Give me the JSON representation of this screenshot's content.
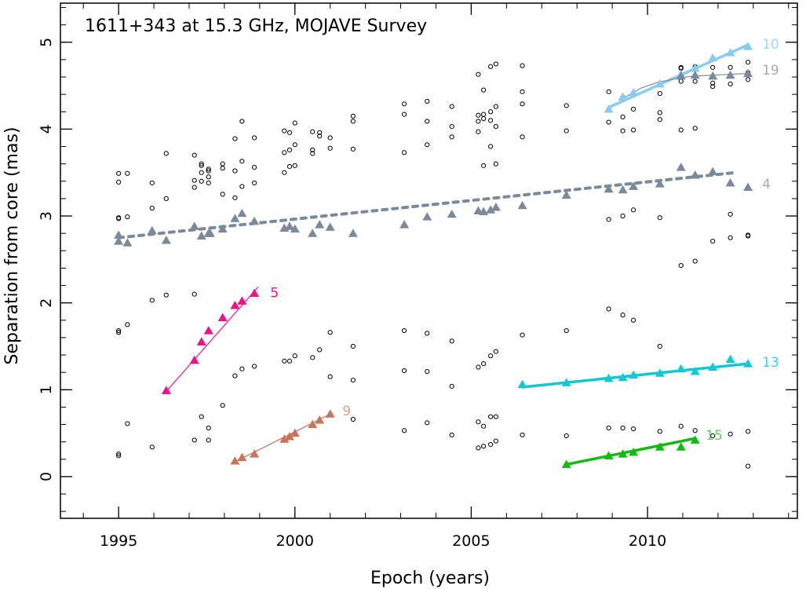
{
  "chart_data": {
    "type": "scatter",
    "title": "1611+343 at 15.3 GHz, MOJAVE Survey",
    "xlabel": "Epoch (years)",
    "ylabel": "Separation from core (mas)",
    "xlim": [
      1993.35,
      2014.25
    ],
    "ylim": [
      -0.48,
      5.45
    ],
    "x_ticks": [
      1995,
      2000,
      2005,
      2010
    ],
    "y_ticks": [
      0,
      1,
      2,
      3,
      4,
      5
    ],
    "x_tick_labels": [
      "1995",
      "2000",
      "2005",
      "2010"
    ],
    "y_tick_labels": [
      "0",
      "1",
      "2",
      "3",
      "4",
      "5"
    ],
    "background_points": [
      [
        1995.0,
        0.24
      ],
      [
        1995.0,
        0.26
      ],
      [
        1995.0,
        1.66
      ],
      [
        1995.0,
        1.68
      ],
      [
        1995.0,
        2.97
      ],
      [
        1995.0,
        2.98
      ],
      [
        1995.0,
        3.39
      ],
      [
        1995.0,
        3.49
      ],
      [
        1995.25,
        0.61
      ],
      [
        1995.25,
        1.75
      ],
      [
        1995.25,
        2.99
      ],
      [
        1995.25,
        3.49
      ],
      [
        1995.95,
        0.34
      ],
      [
        1995.95,
        2.03
      ],
      [
        1995.95,
        3.09
      ],
      [
        1995.95,
        3.38
      ],
      [
        1996.35,
        2.09
      ],
      [
        1996.35,
        3.2
      ],
      [
        1996.35,
        3.72
      ],
      [
        1997.15,
        0.42
      ],
      [
        1997.15,
        2.1
      ],
      [
        1997.15,
        3.33
      ],
      [
        1997.15,
        3.41
      ],
      [
        1997.15,
        3.7
      ],
      [
        1997.35,
        0.69
      ],
      [
        1997.35,
        3.4
      ],
      [
        1997.35,
        3.5
      ],
      [
        1997.35,
        3.58
      ],
      [
        1997.35,
        3.6
      ],
      [
        1997.55,
        0.42
      ],
      [
        1997.55,
        0.56
      ],
      [
        1997.55,
        3.38
      ],
      [
        1997.55,
        3.45
      ],
      [
        1997.55,
        3.52
      ],
      [
        1997.55,
        3.54
      ],
      [
        1997.95,
        0.82
      ],
      [
        1997.95,
        3.25
      ],
      [
        1997.95,
        3.55
      ],
      [
        1997.95,
        3.6
      ],
      [
        1998.3,
        1.16
      ],
      [
        1998.3,
        3.21
      ],
      [
        1998.3,
        3.52
      ],
      [
        1998.3,
        3.89
      ],
      [
        1998.5,
        1.24
      ],
      [
        1998.5,
        3.34
      ],
      [
        1998.5,
        3.63
      ],
      [
        1998.5,
        4.09
      ],
      [
        1998.85,
        1.27
      ],
      [
        1998.85,
        3.38
      ],
      [
        1998.85,
        3.56
      ],
      [
        1998.85,
        3.9
      ],
      [
        1999.7,
        1.33
      ],
      [
        1999.7,
        3.5
      ],
      [
        1999.7,
        3.73
      ],
      [
        1999.7,
        3.98
      ],
      [
        1999.85,
        1.33
      ],
      [
        1999.85,
        3.57
      ],
      [
        1999.85,
        3.76
      ],
      [
        1999.85,
        3.96
      ],
      [
        2000.0,
        1.39
      ],
      [
        2000.0,
        3.58
      ],
      [
        2000.0,
        3.82
      ],
      [
        2000.0,
        4.07
      ],
      [
        2000.5,
        1.37
      ],
      [
        2000.5,
        3.72
      ],
      [
        2000.5,
        3.76
      ],
      [
        2000.5,
        3.97
      ],
      [
        2000.7,
        1.46
      ],
      [
        2000.7,
        3.92
      ],
      [
        2000.7,
        3.96
      ],
      [
        2001.0,
        1.15
      ],
      [
        2001.0,
        1.66
      ],
      [
        2001.0,
        3.78
      ],
      [
        2001.0,
        3.9
      ],
      [
        2001.65,
        0.66
      ],
      [
        2001.65,
        1.11
      ],
      [
        2001.65,
        1.5
      ],
      [
        2001.65,
        3.77
      ],
      [
        2001.65,
        4.09
      ],
      [
        2001.65,
        4.15
      ],
      [
        2003.1,
        0.53
      ],
      [
        2003.1,
        1.22
      ],
      [
        2003.1,
        1.68
      ],
      [
        2003.1,
        3.73
      ],
      [
        2003.1,
        4.17
      ],
      [
        2003.1,
        4.29
      ],
      [
        2003.75,
        0.62
      ],
      [
        2003.75,
        1.21
      ],
      [
        2003.75,
        1.65
      ],
      [
        2003.75,
        3.82
      ],
      [
        2003.75,
        4.09
      ],
      [
        2003.75,
        4.32
      ],
      [
        2004.45,
        0.48
      ],
      [
        2004.45,
        1.04
      ],
      [
        2004.45,
        1.56
      ],
      [
        2004.45,
        3.91
      ],
      [
        2004.45,
        4.03
      ],
      [
        2004.45,
        4.26
      ],
      [
        2005.2,
        0.33
      ],
      [
        2005.2,
        0.63
      ],
      [
        2005.2,
        1.26
      ],
      [
        2005.2,
        3.97
      ],
      [
        2005.2,
        4.09
      ],
      [
        2005.2,
        4.16
      ],
      [
        2005.2,
        4.63
      ],
      [
        2005.35,
        0.35
      ],
      [
        2005.35,
        0.58
      ],
      [
        2005.35,
        1.3
      ],
      [
        2005.35,
        3.58
      ],
      [
        2005.35,
        4.12
      ],
      [
        2005.35,
        4.17
      ],
      [
        2005.35,
        4.45
      ],
      [
        2005.55,
        0.37
      ],
      [
        2005.55,
        0.69
      ],
      [
        2005.55,
        1.39
      ],
      [
        2005.55,
        3.8
      ],
      [
        2005.55,
        4.1
      ],
      [
        2005.55,
        4.2
      ],
      [
        2005.55,
        4.72
      ],
      [
        2005.7,
        0.41
      ],
      [
        2005.7,
        0.69
      ],
      [
        2005.7,
        1.44
      ],
      [
        2005.7,
        3.6
      ],
      [
        2005.7,
        4.03
      ],
      [
        2005.7,
        4.26
      ],
      [
        2005.7,
        4.75
      ],
      [
        2006.45,
        0.48
      ],
      [
        2006.45,
        1.63
      ],
      [
        2006.45,
        3.91
      ],
      [
        2006.45,
        4.29
      ],
      [
        2006.45,
        4.43
      ],
      [
        2006.45,
        4.73
      ],
      [
        2007.7,
        0.47
      ],
      [
        2007.7,
        1.68
      ],
      [
        2007.7,
        3.98
      ],
      [
        2007.7,
        4.27
      ],
      [
        2008.9,
        0.56
      ],
      [
        2008.9,
        1.93
      ],
      [
        2008.9,
        2.96
      ],
      [
        2008.9,
        4.08
      ],
      [
        2008.9,
        4.43
      ],
      [
        2009.3,
        0.56
      ],
      [
        2009.3,
        1.86
      ],
      [
        2009.3,
        3.0
      ],
      [
        2009.3,
        3.98
      ],
      [
        2009.3,
        4.14
      ],
      [
        2009.3,
        4.37
      ],
      [
        2009.6,
        0.55
      ],
      [
        2009.6,
        1.8
      ],
      [
        2009.6,
        3.07
      ],
      [
        2009.6,
        3.99
      ],
      [
        2009.6,
        4.23
      ],
      [
        2009.6,
        4.39
      ],
      [
        2010.35,
        0.52
      ],
      [
        2010.35,
        1.5
      ],
      [
        2010.35,
        2.98
      ],
      [
        2010.35,
        4.11
      ],
      [
        2010.35,
        4.19
      ],
      [
        2010.35,
        4.41
      ],
      [
        2010.95,
        0.58
      ],
      [
        2010.95,
        2.43
      ],
      [
        2010.95,
        3.99
      ],
      [
        2010.95,
        4.55
      ],
      [
        2010.95,
        4.7
      ],
      [
        2010.95,
        4.71
      ],
      [
        2011.35,
        0.53
      ],
      [
        2011.35,
        2.48
      ],
      [
        2011.35,
        4.01
      ],
      [
        2011.35,
        4.55
      ],
      [
        2011.35,
        4.72
      ],
      [
        2011.85,
        0.47
      ],
      [
        2011.85,
        2.71
      ],
      [
        2011.85,
        4.49
      ],
      [
        2011.85,
        4.53
      ],
      [
        2011.85,
        4.71
      ],
      [
        2012.35,
        0.49
      ],
      [
        2012.35,
        2.75
      ],
      [
        2012.35,
        3.02
      ],
      [
        2012.35,
        4.52
      ],
      [
        2012.35,
        4.71
      ],
      [
        2012.85,
        0.12
      ],
      [
        2012.85,
        0.52
      ],
      [
        2012.85,
        2.77
      ],
      [
        2012.85,
        2.78
      ],
      [
        2012.85,
        4.57
      ],
      [
        2012.85,
        4.65
      ],
      [
        2012.85,
        4.77
      ]
    ],
    "series": [
      {
        "name": "4",
        "color": "#7a8a9a",
        "fit_color": "#7a8a9a",
        "fit_style": "dotted",
        "fit_width": 4,
        "points": [
          [
            1995.0,
            2.78
          ],
          [
            1995.0,
            2.71
          ],
          [
            1995.25,
            2.69
          ],
          [
            1995.95,
            2.83
          ],
          [
            1996.35,
            2.72
          ],
          [
            1997.15,
            2.88
          ],
          [
            1997.35,
            2.77
          ],
          [
            1997.55,
            2.8
          ],
          [
            1997.6,
            2.8
          ],
          [
            1997.95,
            2.85
          ],
          [
            1998.3,
            2.97
          ],
          [
            1998.5,
            3.03
          ],
          [
            1998.85,
            2.94
          ],
          [
            1999.7,
            2.86
          ],
          [
            1999.85,
            2.88
          ],
          [
            2000.0,
            2.85
          ],
          [
            2000.5,
            2.8
          ],
          [
            2000.7,
            2.9
          ],
          [
            2001.0,
            2.87
          ],
          [
            2001.65,
            2.8
          ],
          [
            2003.1,
            2.9
          ],
          [
            2003.75,
            2.99
          ],
          [
            2004.45,
            3.02
          ],
          [
            2005.2,
            3.06
          ],
          [
            2005.35,
            3.05
          ],
          [
            2005.55,
            3.07
          ],
          [
            2005.7,
            3.1
          ],
          [
            2006.45,
            3.12
          ],
          [
            2007.7,
            3.24
          ],
          [
            2008.9,
            3.31
          ],
          [
            2009.3,
            3.3
          ],
          [
            2009.6,
            3.34
          ],
          [
            2010.35,
            3.37
          ],
          [
            2010.95,
            3.56
          ],
          [
            2011.35,
            3.47
          ],
          [
            2011.85,
            3.51
          ],
          [
            2012.35,
            3.38
          ],
          [
            2012.85,
            3.33
          ]
        ],
        "fit": [
          [
            1995.0,
            2.75
          ],
          [
            2012.5,
            3.5
          ]
        ]
      },
      {
        "name": "5",
        "color": "#ee1188",
        "fit_color": "#ee1188",
        "fit_style": "solid",
        "fit_width": 1.2,
        "points": [
          [
            1996.35,
            0.99
          ],
          [
            1997.15,
            1.34
          ],
          [
            1997.35,
            1.55
          ],
          [
            1997.55,
            1.68
          ],
          [
            1997.95,
            1.83
          ],
          [
            1998.3,
            1.97
          ],
          [
            1998.5,
            2.02
          ],
          [
            1998.85,
            2.11
          ]
        ],
        "fit": [
          [
            1996.35,
            0.98
          ],
          [
            1998.95,
            2.18
          ]
        ]
      },
      {
        "name": "9",
        "color": "#c8735a",
        "fit_color": "#c8735a",
        "fit_style": "solid",
        "fit_width": 1.2,
        "points": [
          [
            1998.3,
            0.18
          ],
          [
            1998.5,
            0.22
          ],
          [
            1998.85,
            0.26
          ],
          [
            1999.7,
            0.43
          ],
          [
            1999.85,
            0.46
          ],
          [
            2000.0,
            0.5
          ],
          [
            2000.5,
            0.6
          ],
          [
            2000.7,
            0.65
          ],
          [
            2001.0,
            0.72
          ]
        ],
        "fit": [
          [
            1998.3,
            0.17
          ],
          [
            2001.05,
            0.73
          ]
        ]
      },
      {
        "name": "10",
        "color": "#88ccf4",
        "fit_color": "#88ccf4",
        "fit_style": "solid",
        "fit_width": 3.5,
        "points": [
          [
            2008.9,
            4.23
          ],
          [
            2009.3,
            4.37
          ],
          [
            2009.6,
            4.42
          ],
          [
            2010.35,
            4.52
          ],
          [
            2010.95,
            4.63
          ],
          [
            2011.35,
            4.7
          ],
          [
            2011.85,
            4.82
          ],
          [
            2012.35,
            4.88
          ],
          [
            2012.85,
            4.95
          ]
        ],
        "fit": [
          [
            2008.9,
            4.25
          ],
          [
            2012.85,
            4.97
          ]
        ]
      },
      {
        "name": "19",
        "color": "#7a8a9a",
        "fit_color": "#7a8a9a",
        "fit_style": "solid",
        "fit_width": 1.2,
        "points": [
          [
            2010.95,
            4.61
          ],
          [
            2011.35,
            4.62
          ],
          [
            2011.85,
            4.61
          ],
          [
            2012.35,
            4.62
          ],
          [
            2012.85,
            4.64
          ]
        ],
        "fit_curve": [
          [
            2009.3,
            4.35
          ],
          [
            2009.8,
            4.47
          ],
          [
            2010.3,
            4.54
          ],
          [
            2010.8,
            4.58
          ],
          [
            2011.3,
            4.61
          ],
          [
            2011.8,
            4.62
          ],
          [
            2012.3,
            4.63
          ],
          [
            2012.85,
            4.64
          ]
        ]
      },
      {
        "name": "13",
        "color": "#11c8d4",
        "fit_color": "#11c8d4",
        "fit_style": "solid",
        "fit_width": 3.5,
        "points": [
          [
            2006.45,
            1.06
          ],
          [
            2007.7,
            1.08
          ],
          [
            2008.9,
            1.13
          ],
          [
            2009.3,
            1.14
          ],
          [
            2009.6,
            1.17
          ],
          [
            2010.35,
            1.19
          ],
          [
            2010.95,
            1.24
          ],
          [
            2011.35,
            1.21
          ],
          [
            2011.85,
            1.26
          ],
          [
            2012.35,
            1.35
          ],
          [
            2012.85,
            1.3
          ]
        ],
        "fit": [
          [
            2006.45,
            1.03
          ],
          [
            2012.85,
            1.3
          ]
        ]
      },
      {
        "name": "15",
        "color": "#11bb11",
        "fit_color": "#11bb11",
        "fit_style": "solid",
        "fit_width": 3.5,
        "points": [
          [
            2007.7,
            0.14
          ],
          [
            2008.9,
            0.24
          ],
          [
            2009.3,
            0.26
          ],
          [
            2009.6,
            0.28
          ],
          [
            2010.35,
            0.34
          ],
          [
            2010.95,
            0.34
          ],
          [
            2011.35,
            0.42
          ]
        ],
        "fit": [
          [
            2007.7,
            0.14
          ],
          [
            2011.35,
            0.44
          ]
        ]
      }
    ],
    "component_labels": [
      {
        "text": "4",
        "color": "#aaaaaa",
        "x": 2013.25,
        "y": 3.37
      },
      {
        "text": "5",
        "color": "#ee1188",
        "x": 1999.3,
        "y": 2.12
      },
      {
        "text": "9",
        "color": "#e8a080",
        "x": 2001.35,
        "y": 0.76
      },
      {
        "text": "10",
        "color": "#99d8ff",
        "x": 2013.25,
        "y": 4.98
      },
      {
        "text": "19",
        "color": "#aaaaaa",
        "x": 2013.25,
        "y": 4.68
      },
      {
        "text": "13",
        "color": "#33d8e0",
        "x": 2013.25,
        "y": 1.32
      },
      {
        "text": "15",
        "color": "#66cc66",
        "x": 2011.65,
        "y": 0.48
      }
    ]
  }
}
